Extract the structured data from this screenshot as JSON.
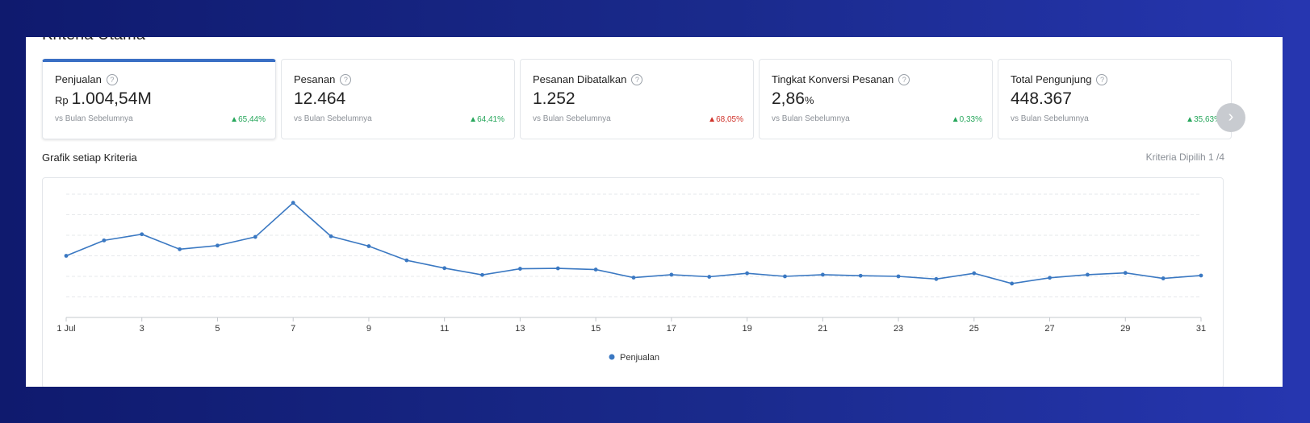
{
  "section": {
    "title": "Kriteria Utama"
  },
  "cards": [
    {
      "label": "Penjualan",
      "prefix": "Rp",
      "value": "1.004,54M",
      "unit": "",
      "compare": "vs Bulan Sebelumnya",
      "delta": "65,44%",
      "direction": "up",
      "active": true
    },
    {
      "label": "Pesanan",
      "prefix": "",
      "value": "12.464",
      "unit": "",
      "compare": "vs Bulan Sebelumnya",
      "delta": "64,41%",
      "direction": "up",
      "active": false
    },
    {
      "label": "Pesanan Dibatalkan",
      "prefix": "",
      "value": "1.252",
      "unit": "",
      "compare": "vs Bulan Sebelumnya",
      "delta": "68,05%",
      "direction": "up-bad",
      "active": false
    },
    {
      "label": "Tingkat Konversi Pesanan",
      "prefix": "",
      "value": "2,86",
      "unit": "%",
      "compare": "vs Bulan Sebelumnya",
      "delta": "0,33%",
      "direction": "up",
      "active": false
    },
    {
      "label": "Total Pengunjung",
      "prefix": "",
      "value": "448.367",
      "unit": "",
      "compare": "vs Bulan Sebelumnya",
      "delta": "35,63%",
      "direction": "up",
      "active": false
    }
  ],
  "next_button": {
    "icon": "chevron-right-icon",
    "glyph": "›"
  },
  "chart": {
    "title": "Grafik setiap Kriteria",
    "selected_label": "Kriteria Dipilih 1 /4"
  },
  "colors": {
    "accent": "#3a6fc4",
    "up": "#26a65b",
    "down": "#d0332b",
    "background_start": "#0f1a6e",
    "background_end": "#2636b0"
  },
  "chart_data": {
    "type": "line",
    "x": [
      1,
      2,
      3,
      4,
      5,
      6,
      7,
      8,
      9,
      10,
      11,
      12,
      13,
      14,
      15,
      16,
      17,
      18,
      19,
      20,
      21,
      22,
      23,
      24,
      25,
      26,
      27,
      28,
      29,
      30,
      31
    ],
    "tick_labels": [
      "1 Jul",
      "3",
      "5",
      "7",
      "9",
      "11",
      "13",
      "15",
      "17",
      "19",
      "21",
      "23",
      "25",
      "27",
      "29",
      "31"
    ],
    "tick_positions": [
      1,
      3,
      5,
      7,
      9,
      11,
      13,
      15,
      17,
      19,
      21,
      23,
      25,
      27,
      29,
      31
    ],
    "series": [
      {
        "name": "Penjualan",
        "color": "#3a78c2",
        "values": [
          30.0,
          37.5,
          40.5,
          33.2,
          35.0,
          39.2,
          55.8,
          39.5,
          34.7,
          27.8,
          24.0,
          20.7,
          23.7,
          23.9,
          23.3,
          19.4,
          20.8,
          19.8,
          21.5,
          20.0,
          20.8,
          20.3,
          20.0,
          18.7,
          21.5,
          16.5,
          19.3,
          20.8,
          21.7,
          19.0,
          20.4
        ]
      }
    ],
    "ylim": [
      0,
      60
    ],
    "y_gridlines": [
      10,
      20,
      30,
      40,
      50,
      60
    ],
    "grid": true,
    "legend_position": "bottom-center",
    "xlabel": "",
    "ylabel": ""
  }
}
